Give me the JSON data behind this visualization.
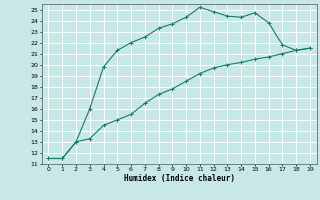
{
  "xlabel": "Humidex (Indice chaleur)",
  "background_color": "#c8e8e8",
  "plot_bg_color": "#c8e8e8",
  "grid_color": "#ffffff",
  "line_color": "#1a7a6a",
  "xlim": [
    -0.5,
    19.5
  ],
  "ylim": [
    11,
    25.5
  ],
  "yticks": [
    11,
    12,
    13,
    14,
    15,
    16,
    17,
    18,
    19,
    20,
    21,
    22,
    23,
    24,
    25
  ],
  "xticks": [
    0,
    1,
    2,
    3,
    4,
    5,
    6,
    7,
    8,
    9,
    10,
    11,
    12,
    13,
    14,
    15,
    16,
    17,
    18,
    19
  ],
  "series1_x": [
    0,
    1,
    2,
    3,
    4,
    5,
    6,
    7,
    8,
    9,
    10,
    11,
    12,
    13,
    14,
    15,
    16,
    17,
    18,
    19
  ],
  "series1_y": [
    11.5,
    11.5,
    13.0,
    16.0,
    19.8,
    21.3,
    22.0,
    22.5,
    23.3,
    23.7,
    24.3,
    25.2,
    24.8,
    24.4,
    24.3,
    24.7,
    23.8,
    21.8,
    21.3,
    21.5
  ],
  "series2_x": [
    0,
    1,
    2,
    3,
    4,
    5,
    6,
    7,
    8,
    9,
    10,
    11,
    12,
    13,
    14,
    15,
    16,
    17,
    18,
    19
  ],
  "series2_y": [
    11.5,
    11.5,
    13.0,
    13.3,
    14.5,
    15.0,
    15.5,
    16.5,
    17.3,
    17.8,
    18.5,
    19.2,
    19.7,
    20.0,
    20.2,
    20.5,
    20.7,
    21.0,
    21.3,
    21.5
  ]
}
